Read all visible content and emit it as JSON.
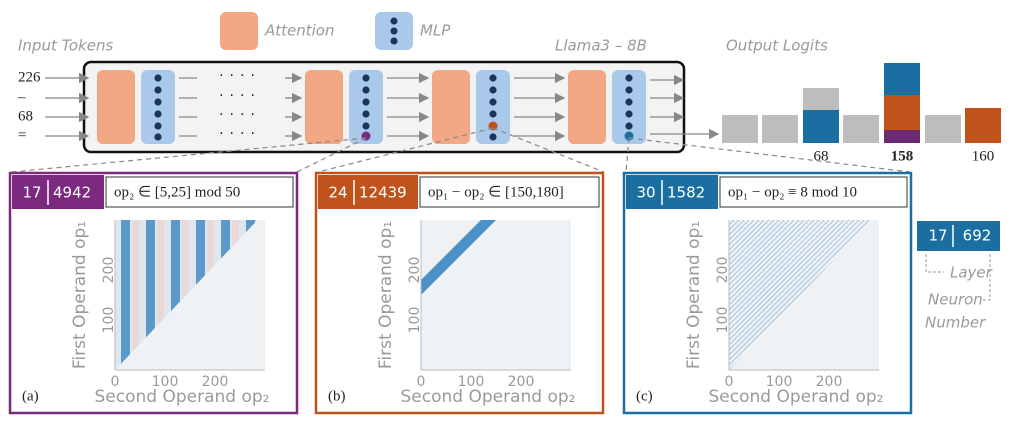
{
  "header": {
    "input_label": "Input Tokens",
    "attention": "Attention",
    "mlp": "MLP",
    "model": "Llama3 – 8B",
    "output_label": "Output Logits"
  },
  "input_tokens": [
    "226",
    "–",
    "68",
    "="
  ],
  "output_labels": [
    "68",
    "158",
    "160"
  ],
  "panels": [
    {
      "tag": "(a)",
      "layer": "17",
      "neuron": "4942",
      "formula": "op₂ ∈ [5,25] mod 50",
      "y_label": "First Operand op₁",
      "x_label": "Second Operand op₂",
      "x_ticks": [
        "0",
        "100",
        "200"
      ],
      "y_ticks": [
        "100",
        "200"
      ]
    },
    {
      "tag": "(b)",
      "layer": "24",
      "neuron": "12439",
      "formula": "op₁ − op₂ ∈ [150,180]",
      "y_label": "First Operand op₁",
      "x_label": "Second Operand op₂",
      "x_ticks": [
        "0",
        "100",
        "200"
      ],
      "y_ticks": [
        "100",
        "200"
      ]
    },
    {
      "tag": "(c)",
      "layer": "30",
      "neuron": "1582",
      "formula": "op₁ − op₂ ≡ 8 mod 10",
      "y_label": "First Operand op₁",
      "x_label": "Second Operand op₂",
      "x_ticks": [
        "0",
        "100",
        "200"
      ],
      "y_ticks": [
        "100",
        "200"
      ]
    }
  ],
  "legend": {
    "layer": "17",
    "neuron": "692",
    "layer_label": "Layer",
    "neuron_label": "Neuron",
    "number_label": "Number"
  }
}
